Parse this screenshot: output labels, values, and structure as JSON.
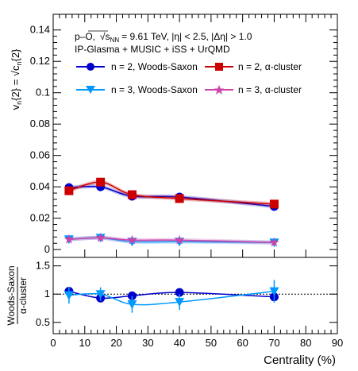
{
  "chart_data": [
    {
      "type": "line",
      "role": "main",
      "ylabel": "v_n{2} = √c_n{2}",
      "ylabel_main": "v",
      "ylabel_sub1": "n",
      "ylabel_mid": "{2} =",
      "ylabel_root": "c",
      "ylabel_sub2": "n",
      "ylabel_end": "{2}",
      "ylim": [
        -0.005,
        0.15
      ],
      "yticks": [
        "0",
        "0.02",
        "0.04",
        "0.06",
        "0.08",
        "0.1",
        "0.12",
        "0.14"
      ],
      "annotation_line1": "p–O,  √s_NN = 9.61 TeV, |η| < 2.5, |Δη| > 1.0",
      "annotation_line1_a": "p–O,",
      "annotation_line1_s": "s",
      "annotation_line1_sub": "NN",
      "annotation_line1_b": "= 9.61 TeV, |η| < 2.5, |Δη| > 1.0",
      "annotation_line2": "IP-Glasma +  MUSIC + iSS + UrQMD",
      "series": [
        {
          "name": "n = 2, Woods-Saxon",
          "color": "#0000cc",
          "marker": "circle",
          "x": [
            5,
            15,
            25,
            40,
            70
          ],
          "y": [
            0.0395,
            0.04,
            0.034,
            0.0335,
            0.0275
          ]
        },
        {
          "name": "n = 2,   α-cluster",
          "color": "#cc0000",
          "marker": "square",
          "x": [
            5,
            15,
            25,
            40,
            70
          ],
          "y": [
            0.0375,
            0.043,
            0.035,
            0.0325,
            0.029
          ]
        },
        {
          "name": "n = 3, Woods-Saxon",
          "color": "#0099ff",
          "marker": "triangle-down",
          "x": [
            5,
            15,
            25,
            40,
            70
          ],
          "y": [
            0.0065,
            0.0075,
            0.005,
            0.005,
            0.0045
          ]
        },
        {
          "name": "n = 3,   α-cluster",
          "color": "#cc44aa",
          "marker": "star",
          "x": [
            5,
            15,
            25,
            40,
            70
          ],
          "y": [
            0.0065,
            0.0075,
            0.006,
            0.006,
            0.0045
          ]
        }
      ]
    },
    {
      "type": "line",
      "role": "ratio",
      "ylabel_num": "Woods-Saxon",
      "ylabel_den": "α-cluster",
      "xlabel": "Centrality (%)",
      "xlim": [
        0,
        90
      ],
      "ylim": [
        0.3,
        1.65
      ],
      "yticks": [
        "0.5",
        "1",
        "1.5"
      ],
      "xticks": [
        "0",
        "10",
        "20",
        "30",
        "40",
        "50",
        "60",
        "70",
        "80",
        "90"
      ],
      "reference_line": 1,
      "series": [
        {
          "name": "n = 2",
          "color": "#0000cc",
          "marker": "circle",
          "x": [
            5,
            15,
            25,
            40,
            70
          ],
          "y": [
            1.05,
            0.93,
            0.97,
            1.03,
            0.95
          ],
          "err": [
            0.04,
            0.04,
            0.03,
            0.03,
            0.04
          ]
        },
        {
          "name": "n = 3",
          "color": "#0099ff",
          "marker": "triangle-down",
          "x": [
            5,
            15,
            25,
            40,
            70
          ],
          "y": [
            0.98,
            1.0,
            0.82,
            0.86,
            1.05
          ],
          "err": [
            0.15,
            0.12,
            0.15,
            0.14,
            0.2
          ]
        }
      ]
    }
  ]
}
